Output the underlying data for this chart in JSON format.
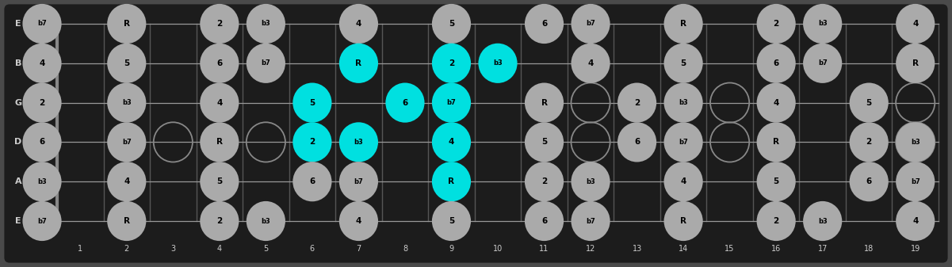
{
  "frets": 19,
  "strings_labels": [
    "E",
    "B",
    "G",
    "D",
    "A",
    "E"
  ],
  "bg_color": "#4a4a4a",
  "board_color": "#1c1c1c",
  "fret_color": "#555555",
  "string_color": "#999999",
  "note_color_normal": "#aaaaaa",
  "note_color_highlight": "#00e0e0",
  "note_text_color": "#000000",
  "label_color": "#cccccc",
  "open_ring_color": "#888888",
  "fret_numbers": [
    1,
    2,
    3,
    4,
    5,
    6,
    7,
    8,
    9,
    10,
    11,
    12,
    13,
    14,
    15,
    16,
    17,
    18,
    19
  ],
  "notes": [
    {
      "string": 6,
      "fret": 0,
      "label": "b7",
      "highlight": false
    },
    {
      "string": 6,
      "fret": 2,
      "label": "R",
      "highlight": false
    },
    {
      "string": 6,
      "fret": 4,
      "label": "2",
      "highlight": false
    },
    {
      "string": 6,
      "fret": 5,
      "label": "b3",
      "highlight": false
    },
    {
      "string": 6,
      "fret": 7,
      "label": "4",
      "highlight": false
    },
    {
      "string": 6,
      "fret": 9,
      "label": "5",
      "highlight": false
    },
    {
      "string": 6,
      "fret": 11,
      "label": "6",
      "highlight": false
    },
    {
      "string": 6,
      "fret": 12,
      "label": "b7",
      "highlight": false
    },
    {
      "string": 6,
      "fret": 14,
      "label": "R",
      "highlight": false
    },
    {
      "string": 6,
      "fret": 16,
      "label": "2",
      "highlight": false
    },
    {
      "string": 6,
      "fret": 17,
      "label": "b3",
      "highlight": false
    },
    {
      "string": 6,
      "fret": 19,
      "label": "4",
      "highlight": false
    },
    {
      "string": 5,
      "fret": 0,
      "label": "4",
      "highlight": false
    },
    {
      "string": 5,
      "fret": 2,
      "label": "5",
      "highlight": false
    },
    {
      "string": 5,
      "fret": 4,
      "label": "6",
      "highlight": false
    },
    {
      "string": 5,
      "fret": 5,
      "label": "b7",
      "highlight": false
    },
    {
      "string": 5,
      "fret": 7,
      "label": "R",
      "highlight": true
    },
    {
      "string": 5,
      "fret": 9,
      "label": "2",
      "highlight": true
    },
    {
      "string": 5,
      "fret": 10,
      "label": "b3",
      "highlight": true
    },
    {
      "string": 5,
      "fret": 12,
      "label": "4",
      "highlight": false
    },
    {
      "string": 5,
      "fret": 14,
      "label": "5",
      "highlight": false
    },
    {
      "string": 5,
      "fret": 16,
      "label": "6",
      "highlight": false
    },
    {
      "string": 5,
      "fret": 17,
      "label": "b7",
      "highlight": false
    },
    {
      "string": 5,
      "fret": 19,
      "label": "R",
      "highlight": false
    },
    {
      "string": 4,
      "fret": 0,
      "label": "2",
      "highlight": false
    },
    {
      "string": 4,
      "fret": 2,
      "label": "b3",
      "highlight": false
    },
    {
      "string": 4,
      "fret": 4,
      "label": "4",
      "highlight": false
    },
    {
      "string": 4,
      "fret": 6,
      "label": "5",
      "highlight": true
    },
    {
      "string": 4,
      "fret": 8,
      "label": "6",
      "highlight": true
    },
    {
      "string": 4,
      "fret": 9,
      "label": "b7",
      "highlight": true
    },
    {
      "string": 4,
      "fret": 11,
      "label": "R",
      "highlight": false
    },
    {
      "string": 4,
      "fret": 13,
      "label": "2",
      "highlight": false
    },
    {
      "string": 4,
      "fret": 14,
      "label": "b3",
      "highlight": false
    },
    {
      "string": 4,
      "fret": 16,
      "label": "4",
      "highlight": false
    },
    {
      "string": 4,
      "fret": 18,
      "label": "5",
      "highlight": false
    },
    {
      "string": 3,
      "fret": 0,
      "label": "6",
      "highlight": false
    },
    {
      "string": 3,
      "fret": 2,
      "label": "b7",
      "highlight": false
    },
    {
      "string": 3,
      "fret": 4,
      "label": "R",
      "highlight": false
    },
    {
      "string": 3,
      "fret": 6,
      "label": "2",
      "highlight": true
    },
    {
      "string": 3,
      "fret": 7,
      "label": "b3",
      "highlight": true
    },
    {
      "string": 3,
      "fret": 9,
      "label": "4",
      "highlight": true
    },
    {
      "string": 3,
      "fret": 11,
      "label": "5",
      "highlight": false
    },
    {
      "string": 3,
      "fret": 13,
      "label": "6",
      "highlight": false
    },
    {
      "string": 3,
      "fret": 14,
      "label": "b7",
      "highlight": false
    },
    {
      "string": 3,
      "fret": 16,
      "label": "R",
      "highlight": false
    },
    {
      "string": 3,
      "fret": 18,
      "label": "2",
      "highlight": false
    },
    {
      "string": 3,
      "fret": 19,
      "label": "b3",
      "highlight": false
    },
    {
      "string": 2,
      "fret": 0,
      "label": "b3",
      "highlight": false
    },
    {
      "string": 2,
      "fret": 2,
      "label": "4",
      "highlight": false
    },
    {
      "string": 2,
      "fret": 4,
      "label": "5",
      "highlight": false
    },
    {
      "string": 2,
      "fret": 6,
      "label": "6",
      "highlight": false
    },
    {
      "string": 2,
      "fret": 7,
      "label": "b7",
      "highlight": false
    },
    {
      "string": 2,
      "fret": 9,
      "label": "R",
      "highlight": true
    },
    {
      "string": 2,
      "fret": 11,
      "label": "2",
      "highlight": false
    },
    {
      "string": 2,
      "fret": 12,
      "label": "b3",
      "highlight": false
    },
    {
      "string": 2,
      "fret": 14,
      "label": "4",
      "highlight": false
    },
    {
      "string": 2,
      "fret": 16,
      "label": "5",
      "highlight": false
    },
    {
      "string": 2,
      "fret": 18,
      "label": "6",
      "highlight": false
    },
    {
      "string": 2,
      "fret": 19,
      "label": "b7",
      "highlight": false
    },
    {
      "string": 1,
      "fret": 0,
      "label": "b7",
      "highlight": false
    },
    {
      "string": 1,
      "fret": 2,
      "label": "R",
      "highlight": false
    },
    {
      "string": 1,
      "fret": 4,
      "label": "2",
      "highlight": false
    },
    {
      "string": 1,
      "fret": 5,
      "label": "b3",
      "highlight": false
    },
    {
      "string": 1,
      "fret": 7,
      "label": "4",
      "highlight": false
    },
    {
      "string": 1,
      "fret": 9,
      "label": "5",
      "highlight": false
    },
    {
      "string": 1,
      "fret": 11,
      "label": "6",
      "highlight": false
    },
    {
      "string": 1,
      "fret": 12,
      "label": "b7",
      "highlight": false
    },
    {
      "string": 1,
      "fret": 14,
      "label": "R",
      "highlight": false
    },
    {
      "string": 1,
      "fret": 16,
      "label": "2",
      "highlight": false
    },
    {
      "string": 1,
      "fret": 17,
      "label": "b3",
      "highlight": false
    },
    {
      "string": 1,
      "fret": 19,
      "label": "4",
      "highlight": false
    }
  ],
  "open_circles": [
    {
      "string": 3,
      "fret": 3
    },
    {
      "string": 3,
      "fret": 5
    },
    {
      "string": 4,
      "fret": 12
    },
    {
      "string": 3,
      "fret": 12
    },
    {
      "string": 3,
      "fret": 15
    },
    {
      "string": 4,
      "fret": 15
    },
    {
      "string": 3,
      "fret": 19
    },
    {
      "string": 4,
      "fret": 19
    }
  ]
}
